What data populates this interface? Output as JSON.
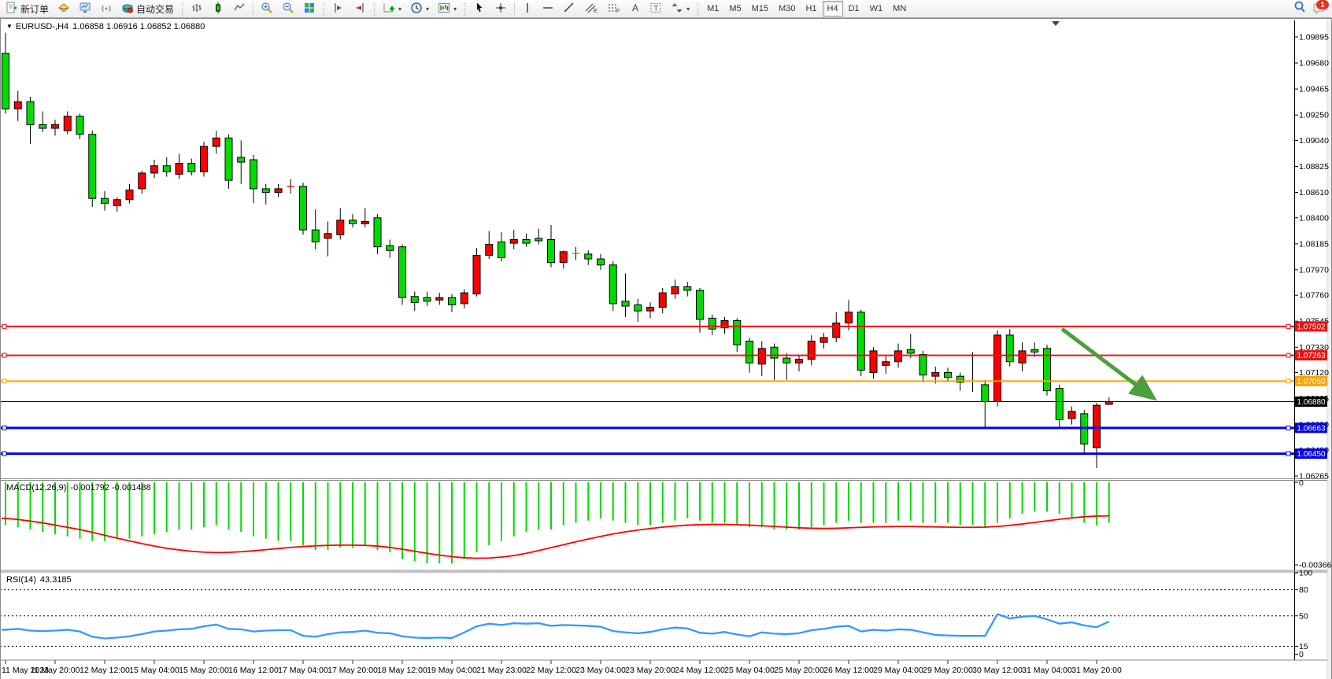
{
  "toolbar": {
    "new_order_label": "新订单",
    "auto_trading_label": "自动交易",
    "timeframes": [
      "M1",
      "M5",
      "M15",
      "M30",
      "H1",
      "H4",
      "D1",
      "W1",
      "MN"
    ],
    "active_timeframe": "H4",
    "notification_badge": "1"
  },
  "chart": {
    "title": {
      "symbol": "EURUSD-,H4",
      "ohlc": "1.06858 1.06916 1.06852 1.06880"
    },
    "price_axis": {
      "ticks": [
        "1.09895",
        "1.09680",
        "1.09465",
        "1.09250",
        "1.09040",
        "1.08825",
        "1.08610",
        "1.08400",
        "1.08185",
        "1.07970",
        "1.07760",
        "1.07545",
        "1.07330",
        "1.07120",
        "1.06905",
        "1.06690",
        "1.06480",
        "1.06265"
      ]
    },
    "hlines": [
      {
        "price": "1.07502",
        "color": "#ee1111",
        "width": 2,
        "handles": true
      },
      {
        "price": "1.07263",
        "color": "#ee1111",
        "width": 2,
        "handles": true
      },
      {
        "price": "1.07050",
        "color": "#ffa200",
        "width": 2,
        "handles": true
      },
      {
        "price": "1.06880",
        "color": "#000000",
        "width": 1,
        "handles": false
      },
      {
        "price": "1.06663",
        "color": "#0000ee",
        "width": 3,
        "handles": true
      },
      {
        "price": "1.06450",
        "color": "#0000ee",
        "width": 3,
        "handles": true
      }
    ],
    "time_axis": [
      "11 May 2023",
      "11 May 20:00",
      "12 May 12:00",
      "15 May 04:00",
      "15 May 20:00",
      "16 May 12:00",
      "17 May 04:00",
      "17 May 20:00",
      "18 May 12:00",
      "19 May 04:00",
      "21 May 23:00",
      "22 May 12:00",
      "23 May 04:00",
      "23 May 20:00",
      "24 May 12:00",
      "25 May 04:00",
      "25 May 20:00",
      "26 May 12:00",
      "29 May 04:00",
      "29 May 20:00",
      "30 May 12:00",
      "31 May 04:00",
      "31 May 20:00"
    ],
    "colors": {
      "up": "#ff0000",
      "down": "#00dc00",
      "wick": "#000000",
      "arrow": "#4aa03c"
    },
    "candles": [
      [
        1.0976,
        1.0993,
        1.0926,
        1.093
      ],
      [
        1.093,
        1.0945,
        1.092,
        1.0936
      ],
      [
        1.0936,
        1.094,
        1.0901,
        1.0917
      ],
      [
        1.0917,
        1.0928,
        1.0911,
        1.0914
      ],
      [
        1.0914,
        1.0921,
        1.0908,
        1.0917
      ],
      [
        1.0912,
        1.0928,
        1.0909,
        1.0924
      ],
      [
        1.0924,
        1.0926,
        1.0905,
        1.0909
      ],
      [
        1.0909,
        1.0912,
        1.0849,
        1.0856
      ],
      [
        1.0856,
        1.0862,
        1.0846,
        1.0852
      ],
      [
        1.085,
        1.0857,
        1.0845,
        1.0855
      ],
      [
        1.0855,
        1.0868,
        1.0852,
        1.0863
      ],
      [
        1.0864,
        1.0879,
        1.086,
        1.0877
      ],
      [
        1.0877,
        1.0888,
        1.0873,
        1.0883
      ],
      [
        1.0883,
        1.089,
        1.0874,
        1.0878
      ],
      [
        1.0876,
        1.0893,
        1.0872,
        1.0885
      ],
      [
        1.0885,
        1.0889,
        1.0875,
        1.0878
      ],
      [
        1.0878,
        1.0903,
        1.0874,
        1.0899
      ],
      [
        1.0899,
        1.0912,
        1.0893,
        1.0906
      ],
      [
        1.0906,
        1.0909,
        1.0864,
        1.0871
      ],
      [
        1.089,
        1.0904,
        1.0868,
        1.0886
      ],
      [
        1.0888,
        1.0892,
        1.0852,
        1.0864
      ],
      [
        1.0864,
        1.0868,
        1.0851,
        1.0861
      ],
      [
        1.0861,
        1.0868,
        1.0857,
        1.0864
      ],
      [
        1.0866,
        1.0872,
        1.086,
        1.0866
      ],
      [
        1.0866,
        1.0869,
        1.0826,
        1.083
      ],
      [
        1.083,
        1.0847,
        1.0814,
        1.082
      ],
      [
        1.0823,
        1.0837,
        1.0808,
        1.0827
      ],
      [
        1.0826,
        1.0848,
        1.0822,
        1.0838
      ],
      [
        1.0838,
        1.0843,
        1.0832,
        1.0835
      ],
      [
        1.0835,
        1.0848,
        1.0832,
        1.0837
      ],
      [
        1.084,
        1.0843,
        1.081,
        1.0816
      ],
      [
        1.0817,
        1.0822,
        1.0807,
        1.0813
      ],
      [
        1.0816,
        1.0818,
        1.0768,
        1.0774
      ],
      [
        1.0775,
        1.0779,
        1.0763,
        1.077
      ],
      [
        1.0774,
        1.0779,
        1.0767,
        1.0771
      ],
      [
        1.0772,
        1.0778,
        1.0768,
        1.0774
      ],
      [
        1.0774,
        1.0777,
        1.0762,
        1.0768
      ],
      [
        1.0769,
        1.0781,
        1.0765,
        1.0778
      ],
      [
        1.0777,
        1.0815,
        1.0775,
        1.0809
      ],
      [
        1.0809,
        1.0829,
        1.0806,
        1.0818
      ],
      [
        1.082,
        1.0828,
        1.0804,
        1.0807
      ],
      [
        1.0819,
        1.083,
        1.0814,
        1.0822
      ],
      [
        1.0822,
        1.0827,
        1.0816,
        1.0819
      ],
      [
        1.0823,
        1.0831,
        1.0818,
        1.0821
      ],
      [
        1.0822,
        1.0834,
        1.0799,
        1.0803
      ],
      [
        1.0803,
        1.0813,
        1.0798,
        1.0812
      ],
      [
        1.0811,
        1.0816,
        1.0805,
        1.081
      ],
      [
        1.081,
        1.0813,
        1.0801,
        1.0806
      ],
      [
        1.0806,
        1.081,
        1.0797,
        1.0801
      ],
      [
        1.0801,
        1.0804,
        1.0763,
        1.0769
      ],
      [
        1.0771,
        1.0794,
        1.0758,
        1.0767
      ],
      [
        1.0768,
        1.0773,
        1.0754,
        1.0763
      ],
      [
        1.0763,
        1.077,
        1.0757,
        1.0766
      ],
      [
        1.0766,
        1.0782,
        1.0761,
        1.0778
      ],
      [
        1.0777,
        1.0789,
        1.0773,
        1.0783
      ],
      [
        1.0783,
        1.0787,
        1.0775,
        1.078
      ],
      [
        1.078,
        1.0782,
        1.0745,
        1.0756
      ],
      [
        1.0757,
        1.076,
        1.0743,
        1.0748
      ],
      [
        1.0749,
        1.0758,
        1.0744,
        1.0755
      ],
      [
        1.0755,
        1.0757,
        1.0729,
        1.0735
      ],
      [
        1.0738,
        1.0741,
        1.0712,
        1.072
      ],
      [
        1.0719,
        1.0738,
        1.0709,
        1.0732
      ],
      [
        1.0733,
        1.0736,
        1.0706,
        1.0724
      ],
      [
        1.0724,
        1.0728,
        1.0706,
        1.072
      ],
      [
        1.072,
        1.0727,
        1.0713,
        1.0723
      ],
      [
        1.0723,
        1.0743,
        1.0718,
        1.0738
      ],
      [
        1.0737,
        1.0745,
        1.0732,
        1.0741
      ],
      [
        1.0741,
        1.0762,
        1.0737,
        1.0753
      ],
      [
        1.0753,
        1.0772,
        1.0747,
        1.0762
      ],
      [
        1.0762,
        1.0764,
        1.0709,
        1.0714
      ],
      [
        1.0712,
        1.0733,
        1.0707,
        1.073
      ],
      [
        1.0718,
        1.0726,
        1.0711,
        1.0721
      ],
      [
        1.0721,
        1.0736,
        1.0716,
        1.073
      ],
      [
        1.0731,
        1.0744,
        1.0724,
        1.0728
      ],
      [
        1.0727,
        1.073,
        1.0704,
        1.071
      ],
      [
        1.0709,
        1.0717,
        1.0703,
        1.0712
      ],
      [
        1.0712,
        1.0716,
        1.0704,
        1.0708
      ],
      [
        1.0709,
        1.0712,
        1.0697,
        1.0704
      ],
      [
        1.0705,
        1.0729,
        1.0696,
        1.0705
      ],
      [
        1.0702,
        1.0706,
        1.0667,
        1.0688
      ],
      [
        1.0688,
        1.0747,
        1.0684,
        1.0743
      ],
      [
        1.0743,
        1.0748,
        1.0717,
        1.0721
      ],
      [
        1.072,
        1.0737,
        1.0713,
        1.073
      ],
      [
        1.0731,
        1.0737,
        1.0725,
        1.0729
      ],
      [
        1.0732,
        1.0735,
        1.0693,
        1.0697
      ],
      [
        1.0699,
        1.0702,
        1.0667,
        1.0673
      ],
      [
        1.0674,
        1.0684,
        1.0669,
        1.068
      ],
      [
        1.0678,
        1.0681,
        1.0645,
        1.0653
      ],
      [
        1.065,
        1.0687,
        1.0633,
        1.0685
      ],
      [
        1.06858,
        1.06916,
        1.06852,
        1.0688
      ]
    ]
  },
  "macd": {
    "name": "MACD(12,26,9)",
    "values": "-0.001792 -0.001488",
    "axis": [
      "0",
      "-0.003666"
    ],
    "hist_color": "#00dc00",
    "signal_color": "#ff0000",
    "histogram": [
      -0.0019,
      -0.002,
      -0.0021,
      -0.0022,
      -0.0023,
      -0.0024,
      -0.0025,
      -0.0026,
      -0.0026,
      -0.0025,
      -0.0025,
      -0.0024,
      -0.0023,
      -0.0022,
      -0.0021,
      -0.0021,
      -0.002,
      -0.0019,
      -0.0021,
      -0.0022,
      -0.0024,
      -0.0025,
      -0.0026,
      -0.0026,
      -0.0028,
      -0.003,
      -0.003,
      -0.0029,
      -0.0029,
      -0.0028,
      -0.003,
      -0.0031,
      -0.0034,
      -0.0035,
      -0.0036,
      -0.0036,
      -0.0036,
      -0.0034,
      -0.0031,
      -0.0028,
      -0.0026,
      -0.0024,
      -0.0022,
      -0.0021,
      -0.0021,
      -0.0019,
      -0.0018,
      -0.0017,
      -0.0016,
      -0.0017,
      -0.0018,
      -0.0019,
      -0.0019,
      -0.0018,
      -0.0017,
      -0.0016,
      -0.0017,
      -0.0018,
      -0.0018,
      -0.0019,
      -0.002,
      -0.002,
      -0.0021,
      -0.0021,
      -0.0021,
      -0.002,
      -0.0019,
      -0.0018,
      -0.0017,
      -0.0018,
      -0.0018,
      -0.0018,
      -0.0017,
      -0.0017,
      -0.0018,
      -0.0018,
      -0.0018,
      -0.0019,
      -0.0019,
      -0.002,
      -0.0018,
      -0.0016,
      -0.0014,
      -0.0013,
      -0.0013,
      -0.0014,
      -0.0016,
      -0.0018,
      -0.0019,
      -0.001792
    ],
    "signal": [
      -0.0016,
      -0.00165,
      -0.00172,
      -0.0018,
      -0.0019,
      -0.002,
      -0.0021,
      -0.00222,
      -0.00235,
      -0.00248,
      -0.0026,
      -0.00272,
      -0.00283,
      -0.00293,
      -0.003,
      -0.00306,
      -0.0031,
      -0.00312,
      -0.00311,
      -0.00308,
      -0.00304,
      -0.00299,
      -0.00294,
      -0.00289,
      -0.00285,
      -0.00282,
      -0.0028,
      -0.00279,
      -0.00279,
      -0.0028,
      -0.00283,
      -0.00289,
      -0.00297,
      -0.00306,
      -0.00315,
      -0.00323,
      -0.0033,
      -0.00335,
      -0.00337,
      -0.00336,
      -0.00332,
      -0.00325,
      -0.00315,
      -0.00303,
      -0.0029,
      -0.00277,
      -0.00264,
      -0.00252,
      -0.0024,
      -0.00229,
      -0.0022,
      -0.00212,
      -0.00205,
      -0.00199,
      -0.00194,
      -0.0019,
      -0.00188,
      -0.00187,
      -0.00187,
      -0.00188,
      -0.0019,
      -0.00193,
      -0.00196,
      -0.00199,
      -0.00202,
      -0.00204,
      -0.00205,
      -0.00204,
      -0.00202,
      -0.002,
      -0.00198,
      -0.00197,
      -0.00196,
      -0.00196,
      -0.00197,
      -0.00198,
      -0.00199,
      -0.002,
      -0.002,
      -0.00199,
      -0.00196,
      -0.00191,
      -0.00185,
      -0.00178,
      -0.00171,
      -0.00164,
      -0.00158,
      -0.00153,
      -0.0015,
      -0.001488
    ]
  },
  "rsi": {
    "name": "RSI(14)",
    "value": "43.3185",
    "axis": [
      "100",
      "80",
      "50",
      "15",
      "0"
    ],
    "levels": [
      80,
      50,
      15
    ],
    "line_color": "#3399ff",
    "values": [
      34,
      35,
      33,
      32.5,
      33,
      34,
      32,
      26,
      24,
      25,
      26.5,
      29,
      32,
      33,
      34.5,
      35,
      38,
      40,
      35,
      34.5,
      32,
      33,
      33.5,
      33.5,
      27,
      26,
      29,
      31,
      31.5,
      33,
      30.5,
      30,
      26.5,
      25,
      24.5,
      25,
      24.5,
      31,
      38,
      41,
      39.5,
      41.5,
      41,
      41.5,
      38.5,
      39.5,
      39,
      38.5,
      37.5,
      32.5,
      31,
      30,
      31.5,
      34.5,
      36.5,
      35.5,
      30.5,
      29.5,
      31.5,
      28.5,
      26.5,
      31,
      29.5,
      29,
      30,
      33.5,
      35,
      37.5,
      38.5,
      32,
      34,
      33,
      34.5,
      34,
      31,
      28,
      27.5,
      27,
      27,
      27,
      52,
      47,
      49,
      50,
      46,
      41,
      42.5,
      39,
      37,
      43.32
    ]
  }
}
